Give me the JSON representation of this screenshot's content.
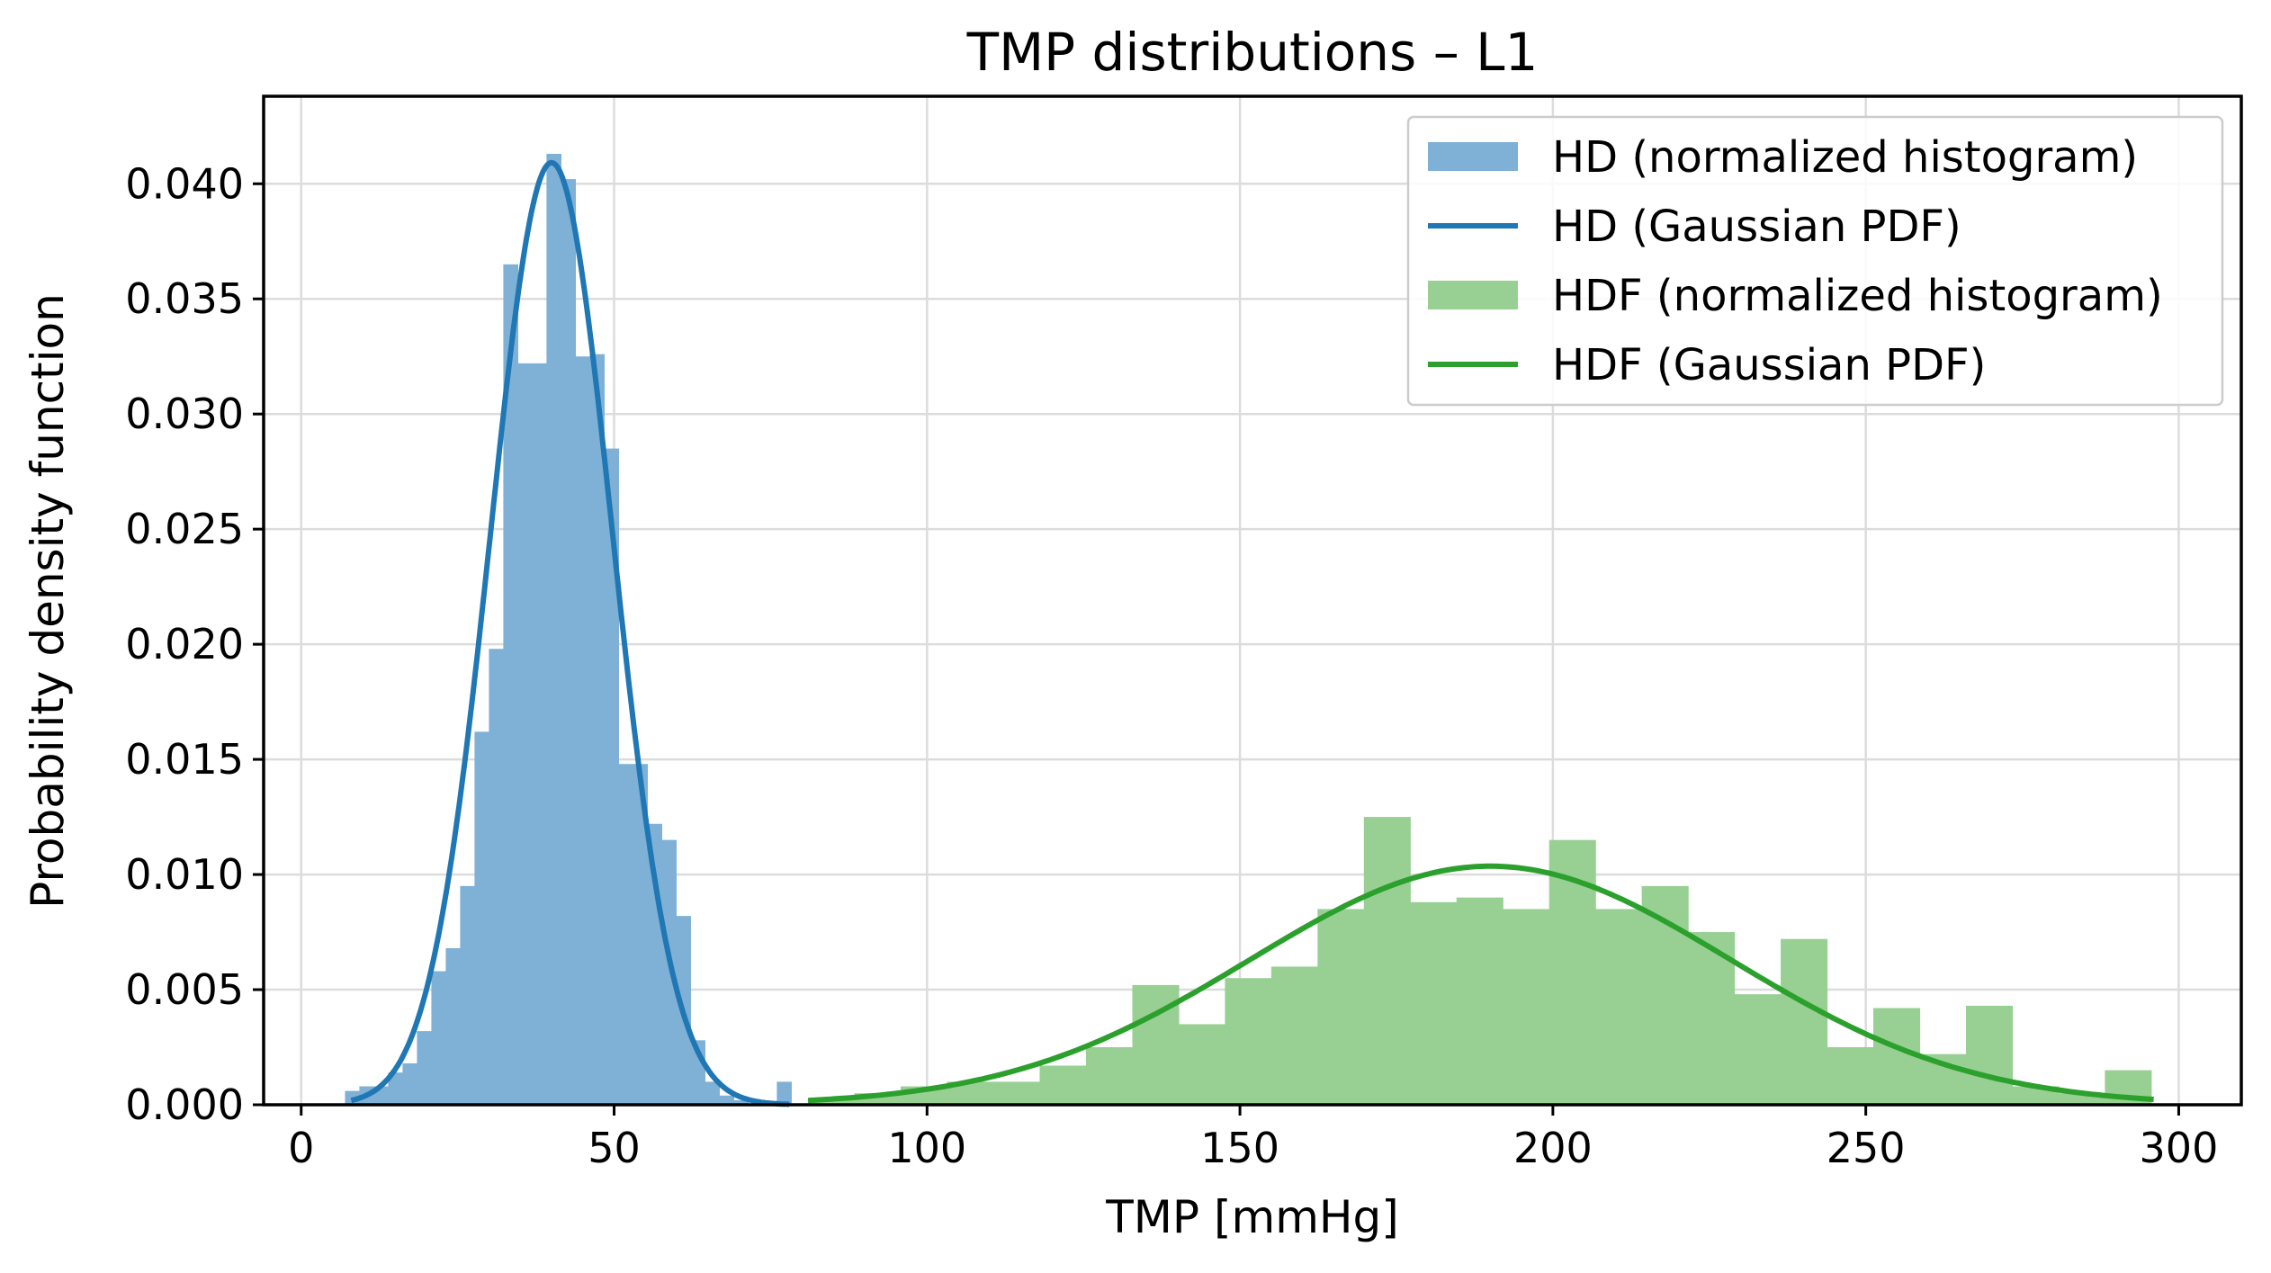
{
  "chart_data": {
    "type": "bar",
    "title": "TMP distributions – L1",
    "xlabel": "TMP [mmHg]",
    "ylabel": "Probability density function",
    "xlim": [
      -6,
      310
    ],
    "ylim": [
      0,
      0.0438
    ],
    "xticks": [
      0,
      50,
      100,
      150,
      200,
      250,
      300
    ],
    "yticks": [
      0.0,
      0.005,
      0.01,
      0.015,
      0.02,
      0.025,
      0.03,
      0.035,
      0.04
    ],
    "ytick_labels": [
      "0.000",
      "0.005",
      "0.010",
      "0.015",
      "0.020",
      "0.025",
      "0.030",
      "0.035",
      "0.040"
    ],
    "grid": true,
    "legend_position": "top-right",
    "series": [
      {
        "name": "HD (normalized histogram)",
        "kind": "histogram",
        "color": "#7fb0d6",
        "bin_width": 2.3,
        "bin_starts": [
          7.0,
          9.3,
          11.6,
          13.9,
          16.2,
          18.5,
          20.8,
          23.1,
          25.4,
          27.7,
          30.0,
          32.3,
          34.6,
          36.9,
          39.2,
          41.5,
          43.8,
          46.1,
          48.4,
          50.7,
          53.0,
          55.3,
          57.6,
          59.9,
          62.2,
          64.5,
          66.8,
          69.1,
          71.4,
          73.7,
          76.0
        ],
        "values": [
          0.0006,
          0.0008,
          0.0008,
          0.0014,
          0.0018,
          0.0032,
          0.0058,
          0.0068,
          0.0095,
          0.0162,
          0.0198,
          0.0365,
          0.0322,
          0.0322,
          0.0413,
          0.0402,
          0.0325,
          0.0326,
          0.0285,
          0.0148,
          0.0148,
          0.0122,
          0.0115,
          0.0082,
          0.0028,
          0.001,
          0.0004,
          0.0002,
          0.0,
          0.0,
          0.001
        ]
      },
      {
        "name": "HD (Gaussian PDF)",
        "kind": "gaussian",
        "color": "#1f77b4",
        "mean": 40.0,
        "std": 9.75,
        "x_range": [
          8,
          78
        ]
      },
      {
        "name": "HDF (normalized histogram)",
        "kind": "histogram",
        "color": "#98d094",
        "bin_width": 7.4,
        "bin_starts": [
          81.0,
          88.4,
          95.8,
          103.2,
          110.6,
          118.0,
          125.4,
          132.8,
          140.2,
          147.6,
          155.0,
          162.4,
          169.8,
          177.2,
          184.6,
          192.0,
          199.4,
          206.8,
          214.2,
          221.6,
          229.0,
          236.4,
          243.8,
          251.2,
          258.6,
          266.0,
          273.4,
          280.8,
          288.2
        ],
        "values": [
          0.0003,
          0.0005,
          0.0008,
          0.001,
          0.001,
          0.0017,
          0.0025,
          0.0052,
          0.0035,
          0.0055,
          0.006,
          0.0085,
          0.0125,
          0.0088,
          0.009,
          0.0085,
          0.0115,
          0.0085,
          0.0095,
          0.0075,
          0.0048,
          0.0072,
          0.0025,
          0.0042,
          0.0022,
          0.0043,
          0.0008,
          0.0005,
          0.0015
        ]
      },
      {
        "name": "HDF (Gaussian PDF)",
        "kind": "gaussian",
        "color": "#2ca02c",
        "mean": 190.0,
        "std": 38.5,
        "x_range": [
          81,
          296
        ]
      }
    ]
  }
}
